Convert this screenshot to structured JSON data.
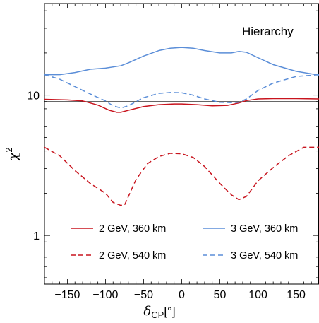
{
  "chart_data": {
    "type": "line",
    "title": "",
    "annotation": "Hierarchy",
    "xlabel": "δ",
    "xlabel_sub": "CP",
    "xlabel_unit": "[°]",
    "ylabel": "χ",
    "ylabel_sup": "2",
    "xlim": [
      -180,
      180
    ],
    "ylim": [
      0.45,
      45
    ],
    "yscale": "log",
    "x_ticks": [
      -150,
      -100,
      -50,
      0,
      50,
      100,
      150
    ],
    "x_tick_labels": [
      "−150",
      "−100",
      "−50",
      "0",
      "50",
      "100",
      "150"
    ],
    "y_ticks": [
      1,
      10
    ],
    "y_tick_labels": [
      "1",
      "10"
    ],
    "grid": false,
    "legend_position": "bottom-center",
    "reference_lines": [
      {
        "y": 9.0,
        "color": "#333333"
      }
    ],
    "series": [
      {
        "name": "2 GeV, 360 km",
        "color": "#c8141e",
        "dash": "solid",
        "x": [
          -180,
          -150,
          -130,
          -110,
          -95,
          -85,
          -80,
          -70,
          -50,
          -30,
          -10,
          0,
          20,
          40,
          60,
          75,
          85,
          100,
          120,
          150,
          180
        ],
        "y": [
          9.35,
          9.25,
          9.1,
          8.5,
          7.8,
          7.55,
          7.55,
          7.8,
          8.3,
          8.55,
          8.65,
          8.65,
          8.55,
          8.4,
          8.45,
          8.8,
          9.15,
          9.4,
          9.45,
          9.45,
          9.4
        ]
      },
      {
        "name": "3 GeV, 360 km",
        "color": "#5b8ed8",
        "dash": "solid",
        "x": [
          -180,
          -160,
          -140,
          -120,
          -100,
          -80,
          -70,
          -50,
          -30,
          -15,
          0,
          15,
          30,
          50,
          65,
          75,
          85,
          100,
          120,
          150,
          180
        ],
        "y": [
          14.0,
          14.0,
          14.5,
          15.3,
          15.6,
          16.2,
          17.0,
          19.0,
          20.8,
          21.6,
          21.9,
          21.6,
          20.8,
          20.0,
          20.0,
          20.5,
          20.2,
          18.5,
          16.5,
          14.8,
          13.9
        ]
      },
      {
        "name": "2 GeV, 540 km",
        "color": "#c8141e",
        "dash": "dashed",
        "x": [
          -180,
          -160,
          -140,
          -120,
          -100,
          -90,
          -80,
          -75,
          -60,
          -45,
          -30,
          -15,
          0,
          15,
          30,
          50,
          65,
          75,
          85,
          100,
          120,
          140,
          160,
          180
        ],
        "y": [
          4.25,
          3.7,
          2.9,
          2.35,
          2.0,
          1.72,
          1.64,
          1.65,
          2.5,
          3.25,
          3.65,
          3.85,
          3.82,
          3.6,
          3.1,
          2.35,
          1.95,
          1.8,
          1.9,
          2.45,
          3.05,
          3.7,
          4.25,
          4.25
        ]
      },
      {
        "name": "3 GeV, 540 km",
        "color": "#5b8ed8",
        "dash": "dashed",
        "x": [
          -180,
          -160,
          -140,
          -120,
          -100,
          -90,
          -80,
          -70,
          -50,
          -30,
          -15,
          0,
          15,
          30,
          50,
          65,
          75,
          85,
          100,
          120,
          150,
          180
        ],
        "y": [
          14.0,
          13.0,
          11.5,
          10.2,
          9.1,
          8.4,
          8.1,
          8.4,
          9.6,
          10.3,
          10.45,
          10.4,
          10.0,
          9.4,
          8.9,
          8.85,
          8.9,
          9.4,
          10.8,
          12.2,
          13.6,
          14.0
        ]
      }
    ]
  }
}
